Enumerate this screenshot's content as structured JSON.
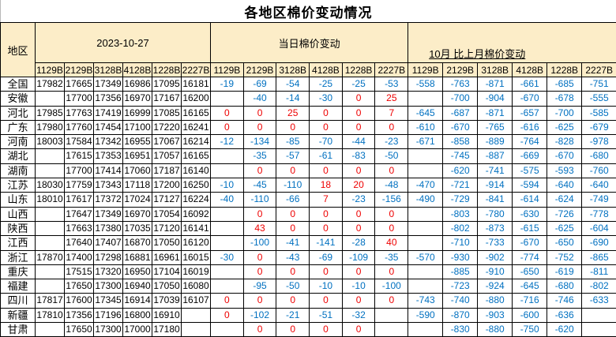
{
  "title": "各地区棉价变动情况",
  "colors": {
    "header_bg": "#FCEDC8",
    "negative": "#0070C0",
    "positive": "#EE0000",
    "grid": "#000000"
  },
  "header": {
    "region_label": "地区",
    "groups": [
      {
        "label": "2023-10-27"
      },
      {
        "label": "当日棉价变动"
      },
      {
        "label": "10月 比上月棉价变动"
      }
    ],
    "grades": [
      "1129B",
      "2129B",
      "3128B",
      "4128B",
      "1228B",
      "2227B"
    ]
  },
  "rows": [
    {
      "region": "全国",
      "prices": [
        "17982",
        "17665",
        "17349",
        "16986",
        "17095",
        "16181"
      ],
      "daily": [
        "-19",
        "-69",
        "-54",
        "-25",
        "-25",
        "-53"
      ],
      "monthly": [
        "-558",
        "-763",
        "-871",
        "-661",
        "-685",
        "-751"
      ]
    },
    {
      "region": "安徽",
      "prices": [
        "",
        "17700",
        "17356",
        "16970",
        "17167",
        "16200"
      ],
      "daily": [
        "",
        "-40",
        "-14",
        "-30",
        "0",
        "25"
      ],
      "monthly": [
        "",
        "-700",
        "-904",
        "-670",
        "-678",
        "-555"
      ]
    },
    {
      "region": "河北",
      "prices": [
        "17985",
        "17763",
        "17419",
        "16999",
        "17085",
        "16165"
      ],
      "daily": [
        "0",
        "0",
        "25",
        "0",
        "0",
        "7"
      ],
      "monthly": [
        "-645",
        "-687",
        "-871",
        "-657",
        "-700",
        "-585"
      ]
    },
    {
      "region": "广东",
      "prices": [
        "17980",
        "17760",
        "17454",
        "17100",
        "17220",
        "16241"
      ],
      "daily": [
        "0",
        "0",
        "0",
        "0",
        "0",
        "0"
      ],
      "monthly": [
        "-610",
        "-670",
        "-765",
        "-616",
        "-625",
        "-679"
      ]
    },
    {
      "region": "河南",
      "prices": [
        "18003",
        "17584",
        "17342",
        "16955",
        "17067",
        "16214"
      ],
      "daily": [
        "-12",
        "-134",
        "-85",
        "-70",
        "-44",
        "-23"
      ],
      "monthly": [
        "-671",
        "-858",
        "-889",
        "-764",
        "-828",
        "-978"
      ]
    },
    {
      "region": "湖北",
      "prices": [
        "",
        "17615",
        "17353",
        "16951",
        "17057",
        "16165"
      ],
      "daily": [
        "",
        "-35",
        "-57",
        "-61",
        "-83",
        "-50"
      ],
      "monthly": [
        "",
        "-745",
        "-887",
        "-669",
        "-670",
        "-680"
      ]
    },
    {
      "region": "湖南",
      "prices": [
        "",
        "17700",
        "17414",
        "17060",
        "17187",
        "16140"
      ],
      "daily": [
        "",
        "0",
        "0",
        "0",
        "0",
        "0"
      ],
      "monthly": [
        "",
        "-620",
        "-741",
        "-575",
        "-593",
        "-760"
      ]
    },
    {
      "region": "江苏",
      "prices": [
        "18030",
        "17759",
        "17343",
        "17118",
        "17200",
        "16250"
      ],
      "daily": [
        "-10",
        "-45",
        "-110",
        "18",
        "20",
        "-48"
      ],
      "monthly": [
        "-470",
        "-721",
        "-914",
        "-594",
        "-640",
        "-640"
      ]
    },
    {
      "region": "山东",
      "prices": [
        "18010",
        "17617",
        "17372",
        "17024",
        "17127",
        "16224"
      ],
      "daily": [
        "-40",
        "-110",
        "-66",
        "7",
        "-23",
        "-156"
      ],
      "monthly": [
        "-490",
        "-729",
        "-841",
        "-614",
        "-624",
        "-749"
      ]
    },
    {
      "region": "山西",
      "prices": [
        "",
        "17647",
        "17349",
        "16970",
        "17054",
        "16092"
      ],
      "daily": [
        "",
        "0",
        "0",
        "0",
        "0",
        "0"
      ],
      "monthly": [
        "",
        "-803",
        "-780",
        "-630",
        "-726",
        "-778"
      ]
    },
    {
      "region": "陕西",
      "prices": [
        "",
        "17663",
        "17380",
        "17035",
        "17120",
        "16141"
      ],
      "daily": [
        "",
        "43",
        "0",
        "0",
        "0",
        "0"
      ],
      "monthly": [
        "",
        "-802",
        "-873",
        "-615",
        "-625",
        "-604"
      ]
    },
    {
      "region": "江西",
      "prices": [
        "",
        "17640",
        "17407",
        "16870",
        "17050",
        "16120"
      ],
      "daily": [
        "",
        "-100",
        "-41",
        "-141",
        "-28",
        "40"
      ],
      "monthly": [
        "",
        "-710",
        "-733",
        "-670",
        "-650",
        "-690"
      ]
    },
    {
      "region": "浙江",
      "prices": [
        "17870",
        "17400",
        "17298",
        "16881",
        "16961",
        "16015"
      ],
      "daily": [
        "-30",
        "0",
        "-43",
        "-69",
        "-109",
        "-35"
      ],
      "monthly": [
        "-570",
        "-930",
        "-902",
        "-774",
        "-752",
        "-865"
      ]
    },
    {
      "region": "重庆",
      "prices": [
        "",
        "17515",
        "17320",
        "16950",
        "17104",
        "16019"
      ],
      "daily": [
        "",
        "0",
        "0",
        "0",
        "0",
        "0"
      ],
      "monthly": [
        "",
        "-885",
        "-910",
        "-650",
        "-619",
        "-811"
      ]
    },
    {
      "region": "福建",
      "prices": [
        "",
        "17650",
        "17300",
        "16940",
        "17050",
        "16080"
      ],
      "daily": [
        "",
        "-95",
        "-50",
        "-10",
        "-10",
        "-100"
      ],
      "monthly": [
        "",
        "-723",
        "-924",
        "-645",
        "-680",
        "-802"
      ]
    },
    {
      "region": "四川",
      "prices": [
        "17817",
        "17600",
        "17345",
        "16914",
        "17039",
        "16107"
      ],
      "daily": [
        "0",
        "0",
        "0",
        "0",
        "0",
        "0"
      ],
      "monthly": [
        "-743",
        "-740",
        "-880",
        "-716",
        "-746",
        "-633"
      ]
    },
    {
      "region": "新疆",
      "prices": [
        "17810",
        "17356",
        "17196",
        "16800",
        "16910",
        ""
      ],
      "daily": [
        "0",
        "-102",
        "-21",
        "-51",
        "-32",
        ""
      ],
      "monthly": [
        "-590",
        "-870",
        "-903",
        "-600",
        "-636",
        ""
      ]
    },
    {
      "region": "甘肃",
      "prices": [
        "",
        "17650",
        "17300",
        "17000",
        "17180",
        ""
      ],
      "daily": [
        "",
        "0",
        "0",
        "0",
        "0",
        ""
      ],
      "monthly": [
        "",
        "-830",
        "-880",
        "-750",
        "-620",
        ""
      ]
    }
  ]
}
